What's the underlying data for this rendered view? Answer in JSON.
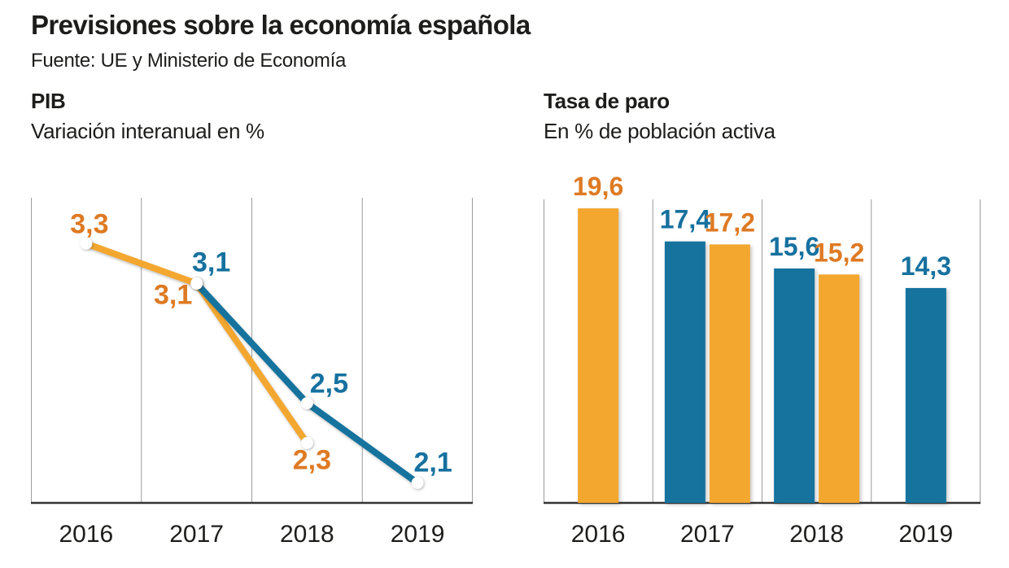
{
  "header": {
    "title": "Previsiones sobre la economía española",
    "source": "Fuente: UE y Ministerio de Economía"
  },
  "colors": {
    "orange": "#F3A72F",
    "orange_text": "#DE7A23",
    "blue": "#15739E",
    "blue_text": "#16719F",
    "grid": "#9C9C9C",
    "axis": "#333333",
    "text": "#1D1D1B",
    "marker": "#FFFFFF"
  },
  "chart_data": [
    {
      "id": "pib",
      "type": "line",
      "title": "PIB",
      "subtitle": "Variación interanual en %",
      "categories": [
        "2016",
        "2017",
        "2018",
        "2019"
      ],
      "series": [
        {
          "color_key": "orange",
          "points": [
            {
              "x": "2016",
              "y": 3.3,
              "label": "3,3"
            },
            {
              "x": "2017",
              "y": 3.1,
              "label": "3,1"
            },
            {
              "x": "2018",
              "y": 2.3,
              "label": "2,3"
            }
          ],
          "label_offsets": [
            [
              4,
              -13
            ],
            [
              -29,
              25
            ],
            [
              6,
              32
            ]
          ]
        },
        {
          "color_key": "blue",
          "points": [
            {
              "x": "2017",
              "y": 3.1,
              "label": "3,1"
            },
            {
              "x": "2018",
              "y": 2.5,
              "label": "2,5"
            },
            {
              "x": "2019",
              "y": 2.1,
              "label": "2,1"
            }
          ],
          "label_offsets": [
            [
              18,
              -15
            ],
            [
              27,
              -13
            ],
            [
              19,
              -14
            ]
          ]
        }
      ],
      "ylim": [
        2.0,
        3.53
      ],
      "grid": "vertical",
      "markers": "white-dots",
      "legend": "none"
    },
    {
      "id": "paro",
      "type": "bar",
      "title": "Tasa de paro",
      "subtitle": "En % de población activa",
      "categories": [
        "2016",
        "2017",
        "2018",
        "2019"
      ],
      "series": [
        {
          "color_key": "blue",
          "values": [
            null,
            17.4,
            15.6,
            14.3
          ],
          "labels": [
            null,
            "17,4",
            "15,6",
            "14,3"
          ]
        },
        {
          "color_key": "orange",
          "values": [
            19.6,
            17.2,
            15.2,
            null
          ],
          "labels": [
            "19,6",
            "17,2",
            "15,2",
            null
          ]
        }
      ],
      "ylim": [
        0,
        20.2
      ],
      "grid": "vertical",
      "legend": "none"
    }
  ]
}
